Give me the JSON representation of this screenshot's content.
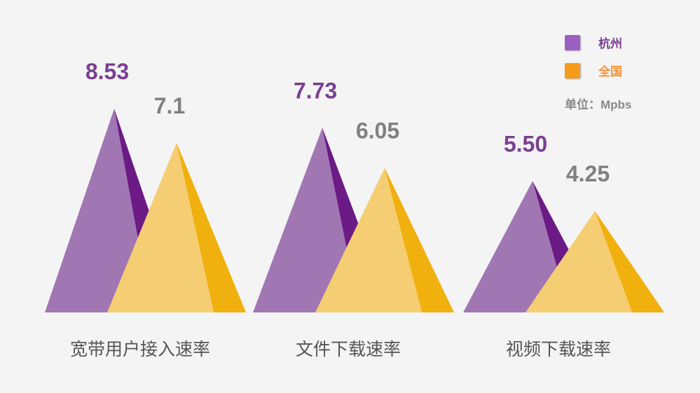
{
  "chart_data": {
    "type": "pyramid-bar",
    "categories": [
      "宽带用户接入速率",
      "文件下载速率",
      "视频下载速率"
    ],
    "series": [
      {
        "name": "杭州",
        "values": [
          8.53,
          7.73,
          5.5
        ],
        "labels": [
          "8.53",
          "7.73",
          "5.50"
        ],
        "color": "#a077b3",
        "dark_color": "#6b1a86",
        "label_color": "#7b3f91",
        "legend_color": "#9b5fc0"
      },
      {
        "name": "全国",
        "values": [
          7.1,
          6.05,
          4.25
        ],
        "labels": [
          "7.1",
          "6.05",
          "4.25"
        ],
        "color": "#f5cd72",
        "dark_color": "#f0b00e",
        "label_color": "#808080",
        "legend_color": "#f59a1a",
        "legend_text_color": "#f5913a"
      }
    ],
    "unit_label": "单位：Mpbs",
    "legend_placement": "top-right",
    "grid": false
  }
}
